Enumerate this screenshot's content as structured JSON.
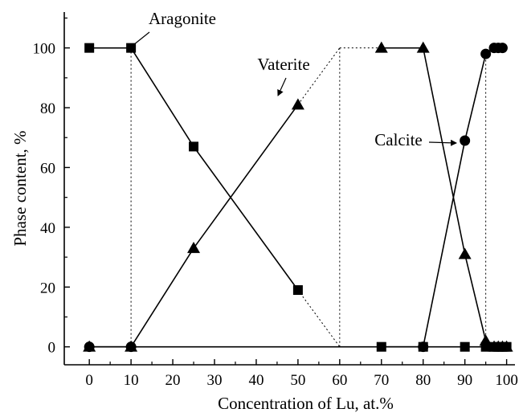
{
  "chart_data": {
    "type": "line",
    "xlabel": "Concentration of Lu, at.%",
    "ylabel": "Phase content, %",
    "xlim": [
      -6,
      102
    ],
    "ylim": [
      -6,
      112
    ],
    "xticks": [
      0,
      10,
      20,
      30,
      40,
      50,
      60,
      70,
      80,
      90,
      100
    ],
    "yticks": [
      0,
      20,
      40,
      60,
      80,
      100
    ],
    "grid": false,
    "legend": "none",
    "series": [
      {
        "name": "Aragonite",
        "marker": "square",
        "x": [
          0,
          10,
          25,
          50,
          70,
          80,
          90,
          95,
          97,
          98,
          99,
          100
        ],
        "y": [
          100,
          100,
          67,
          19,
          0,
          0,
          0,
          0,
          0,
          0,
          0,
          0
        ],
        "segments": [
          [
            0,
            3
          ],
          [
            4,
            11
          ]
        ]
      },
      {
        "name": "Vaterite",
        "marker": "triangle",
        "x": [
          0,
          10,
          25,
          50,
          70,
          80,
          90,
          95,
          97,
          98,
          99,
          100
        ],
        "y": [
          0,
          0,
          33,
          81,
          100,
          100,
          31,
          2,
          0,
          0,
          0,
          0
        ],
        "segments": [
          [
            0,
            3
          ],
          [
            4,
            11
          ]
        ]
      },
      {
        "name": "Calcite",
        "marker": "circle",
        "x": [
          0,
          10,
          80,
          90,
          95,
          97,
          98,
          99
        ],
        "y": [
          0,
          0,
          0,
          69,
          98,
          100,
          100,
          100
        ],
        "segments": [
          [
            0,
            7
          ]
        ]
      }
    ],
    "dotted_links": [
      {
        "x": [
          10,
          10
        ],
        "y": [
          0,
          100
        ]
      },
      {
        "x": [
          50,
          60
        ],
        "y": [
          19,
          0
        ]
      },
      {
        "x": [
          50,
          60
        ],
        "y": [
          81,
          100
        ]
      },
      {
        "x": [
          60,
          60
        ],
        "y": [
          0,
          100
        ]
      },
      {
        "x": [
          60,
          70
        ],
        "y": [
          100,
          100
        ]
      },
      {
        "x": [
          95,
          95
        ],
        "y": [
          0,
          98
        ]
      }
    ],
    "annotations": [
      {
        "text": "Aragonite",
        "series": "Aragonite",
        "x": 10,
        "y": 100
      },
      {
        "text": "Vaterite",
        "series": "Vaterite",
        "x": 50,
        "y": 81
      },
      {
        "text": "Calcite",
        "series": "Calcite",
        "x": 90,
        "y": 69
      }
    ]
  }
}
